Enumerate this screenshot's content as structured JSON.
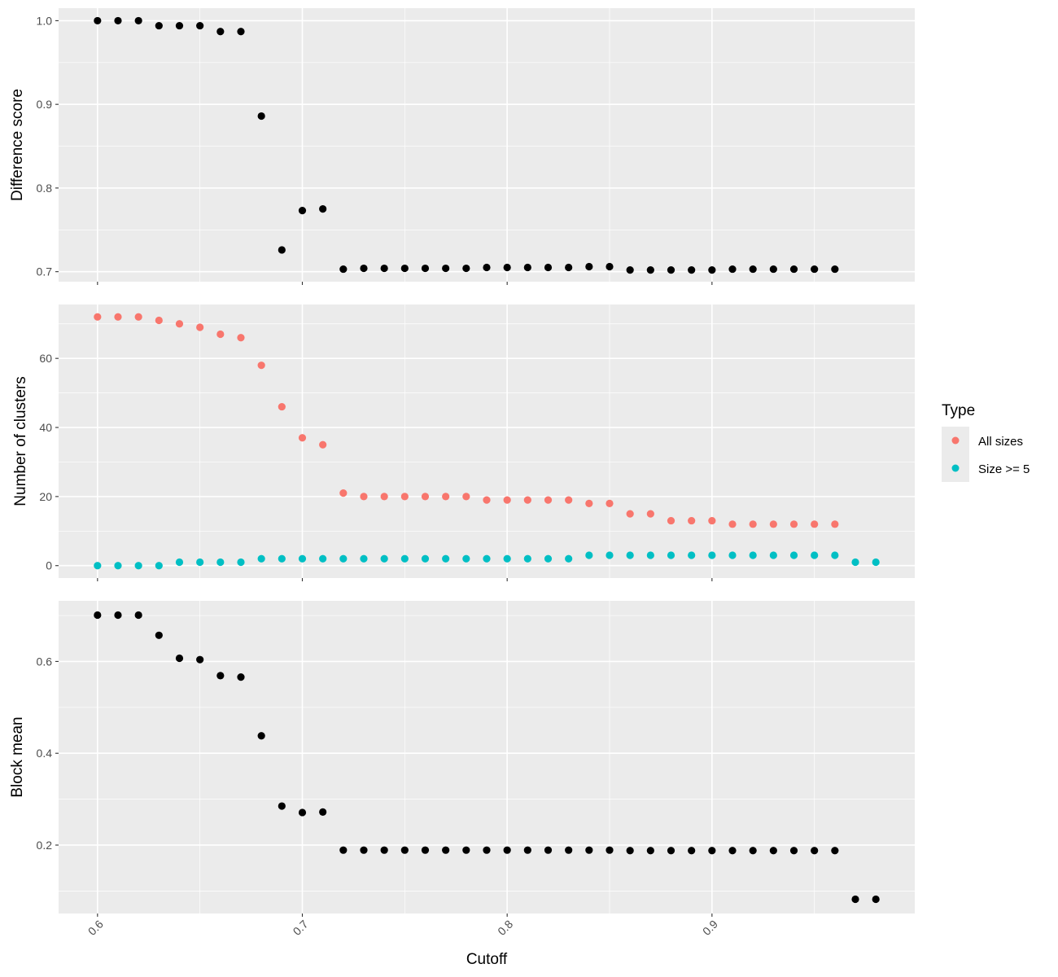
{
  "chart_data": [
    {
      "type": "scatter",
      "ylabel": "Difference score",
      "ylim": [
        0.688,
        1.015
      ],
      "yticks": [
        "0.7",
        "0.8",
        "0.9",
        "1.0"
      ],
      "series": [
        {
          "color": "#000000",
          "x": [
            0.6,
            0.61,
            0.62,
            0.63,
            0.64,
            0.65,
            0.66,
            0.67,
            0.68,
            0.69,
            0.7,
            0.71,
            0.72,
            0.73,
            0.74,
            0.75,
            0.76,
            0.77,
            0.78,
            0.79,
            0.8,
            0.81,
            0.82,
            0.83,
            0.84,
            0.85,
            0.86,
            0.87,
            0.88,
            0.89,
            0.9,
            0.91,
            0.92,
            0.93,
            0.94,
            0.95,
            0.96
          ],
          "y": [
            1.0,
            1.0,
            1.0,
            0.994,
            0.994,
            0.994,
            0.987,
            0.987,
            0.886,
            0.726,
            0.773,
            0.775,
            0.703,
            0.704,
            0.704,
            0.704,
            0.704,
            0.704,
            0.704,
            0.705,
            0.705,
            0.705,
            0.705,
            0.705,
            0.706,
            0.706,
            0.702,
            0.702,
            0.702,
            0.702,
            0.702,
            0.703,
            0.703,
            0.703,
            0.703,
            0.703,
            0.703
          ]
        }
      ],
      "grid": true
    },
    {
      "type": "scatter",
      "ylabel": "Number of clusters",
      "ylim": [
        -3.6,
        75.6
      ],
      "yticks": [
        "0",
        "20",
        "40",
        "60"
      ],
      "series": [
        {
          "name": "All sizes",
          "color": "#F8766D",
          "x": [
            0.6,
            0.61,
            0.62,
            0.63,
            0.64,
            0.65,
            0.66,
            0.67,
            0.68,
            0.69,
            0.7,
            0.71,
            0.72,
            0.73,
            0.74,
            0.75,
            0.76,
            0.77,
            0.78,
            0.79,
            0.8,
            0.81,
            0.82,
            0.83,
            0.84,
            0.85,
            0.86,
            0.87,
            0.88,
            0.89,
            0.9,
            0.91,
            0.92,
            0.93,
            0.94,
            0.95,
            0.96
          ],
          "y": [
            72,
            72,
            72,
            71,
            70,
            69,
            67,
            66,
            58,
            46,
            37,
            35,
            21,
            20,
            20,
            20,
            20,
            20,
            20,
            19,
            19,
            19,
            19,
            19,
            18,
            18,
            15,
            15,
            13,
            13,
            13,
            12,
            12,
            12,
            12,
            12,
            12
          ]
        },
        {
          "name": "Size >= 5",
          "color": "#00BFC4",
          "x": [
            0.6,
            0.61,
            0.62,
            0.63,
            0.64,
            0.65,
            0.66,
            0.67,
            0.68,
            0.69,
            0.7,
            0.71,
            0.72,
            0.73,
            0.74,
            0.75,
            0.76,
            0.77,
            0.78,
            0.79,
            0.8,
            0.81,
            0.82,
            0.83,
            0.84,
            0.85,
            0.86,
            0.87,
            0.88,
            0.89,
            0.9,
            0.91,
            0.92,
            0.93,
            0.94,
            0.95,
            0.96,
            0.97,
            0.98
          ],
          "y": [
            0,
            0,
            0,
            0,
            1,
            1,
            1,
            1,
            2,
            2,
            2,
            2,
            2,
            2,
            2,
            2,
            2,
            2,
            2,
            2,
            2,
            2,
            2,
            2,
            3,
            3,
            3,
            3,
            3,
            3,
            3,
            3,
            3,
            3,
            3,
            3,
            3,
            1,
            1
          ]
        }
      ],
      "grid": true
    },
    {
      "type": "scatter",
      "ylabel": "Block mean",
      "ylim": [
        0.051,
        0.732
      ],
      "yticks": [
        "0.2",
        "0.4",
        "0.6"
      ],
      "series": [
        {
          "color": "#000000",
          "x": [
            0.6,
            0.61,
            0.62,
            0.63,
            0.64,
            0.65,
            0.66,
            0.67,
            0.68,
            0.69,
            0.7,
            0.71,
            0.72,
            0.73,
            0.74,
            0.75,
            0.76,
            0.77,
            0.78,
            0.79,
            0.8,
            0.81,
            0.82,
            0.83,
            0.84,
            0.85,
            0.86,
            0.87,
            0.88,
            0.89,
            0.9,
            0.91,
            0.92,
            0.93,
            0.94,
            0.95,
            0.96,
            0.97,
            0.98
          ],
          "y": [
            0.701,
            0.701,
            0.701,
            0.657,
            0.607,
            0.604,
            0.569,
            0.566,
            0.438,
            0.285,
            0.271,
            0.272,
            0.189,
            0.189,
            0.189,
            0.189,
            0.189,
            0.189,
            0.189,
            0.189,
            0.189,
            0.189,
            0.189,
            0.189,
            0.189,
            0.189,
            0.188,
            0.188,
            0.188,
            0.188,
            0.188,
            0.188,
            0.188,
            0.188,
            0.188,
            0.188,
            0.188,
            0.082,
            0.082
          ]
        }
      ],
      "grid": true
    }
  ],
  "xaxis": {
    "label": "Cutoff",
    "xlim": [
      0.581,
      0.999
    ],
    "ticks": [
      "0.6",
      "0.7",
      "0.8",
      "0.9"
    ]
  },
  "legend": {
    "title": "Type",
    "position": "right",
    "items": [
      {
        "label": "All sizes",
        "color": "#F8766D"
      },
      {
        "label": "Size >= 5",
        "color": "#00BFC4"
      }
    ]
  }
}
